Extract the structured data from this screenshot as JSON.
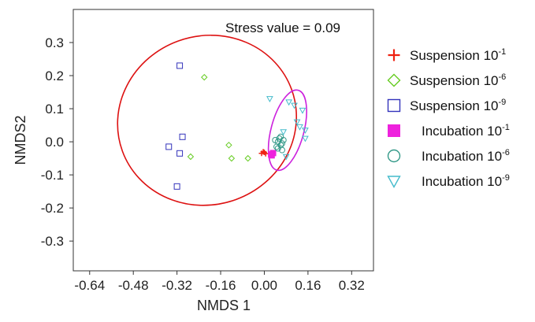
{
  "chart_data": {
    "type": "scatter",
    "xlabel": "NMDS 1",
    "ylabel": "NMDS2",
    "xlim": [
      -0.7,
      0.4
    ],
    "ylim": [
      -0.39,
      0.4
    ],
    "x_ticks": [
      "-0.64",
      "-0.48",
      "-0.32",
      "-0.16",
      "0.00",
      "0.16",
      "0.32"
    ],
    "x_tick_values": [
      -0.64,
      -0.48,
      -0.32,
      -0.16,
      0.0,
      0.16,
      0.32
    ],
    "y_ticks": [
      "0.3",
      "0.2",
      "0.1",
      "0.0",
      "-0.1",
      "-0.2",
      "-0.3"
    ],
    "y_tick_values": [
      0.3,
      0.2,
      0.1,
      0.0,
      -0.1,
      -0.2,
      -0.3
    ],
    "annotation": "Stress value = 0.09",
    "grid": false,
    "legend_position": "right",
    "series": [
      {
        "name": "Suspension 10",
        "name_sup": "-1",
        "marker": "plus",
        "color": "#ee2211",
        "points": [
          [
            -0.01,
            -0.035
          ],
          [
            0.0,
            -0.032
          ],
          [
            0.005,
            -0.036
          ],
          [
            -0.004,
            -0.03
          ]
        ]
      },
      {
        "name": "Suspension 10",
        "name_sup": "-6",
        "marker": "diamond",
        "color": "#66cc22",
        "points": [
          [
            -0.22,
            0.195
          ],
          [
            -0.27,
            -0.045
          ],
          [
            -0.13,
            -0.01
          ],
          [
            -0.12,
            -0.05
          ],
          [
            -0.06,
            -0.05
          ]
        ]
      },
      {
        "name": "Suspension 10",
        "name_sup": "-9",
        "marker": "square",
        "color": "#3333bb",
        "points": [
          [
            -0.31,
            0.23
          ],
          [
            -0.3,
            0.015
          ],
          [
            -0.35,
            -0.015
          ],
          [
            -0.31,
            -0.035
          ],
          [
            -0.32,
            -0.135
          ]
        ]
      },
      {
        "name": "Incubation 10",
        "name_sup": "-1",
        "marker": "filled-square",
        "color": "#ee22dd",
        "points": [
          [
            0.025,
            -0.038
          ],
          [
            0.032,
            -0.034
          ],
          [
            0.027,
            -0.041
          ]
        ]
      },
      {
        "name": "Incubation 10",
        "name_sup": "-6",
        "marker": "circle",
        "color": "#339988",
        "points": [
          [
            0.05,
            0.0
          ],
          [
            0.06,
            -0.01
          ],
          [
            0.055,
            0.01
          ],
          [
            0.065,
            -0.005
          ],
          [
            0.045,
            -0.015
          ],
          [
            0.07,
            0.005
          ],
          [
            0.05,
            -0.02
          ],
          [
            0.06,
            0.015
          ],
          [
            0.04,
            0.005
          ],
          [
            0.065,
            -0.025
          ]
        ]
      },
      {
        "name": "Incubation 10",
        "name_sup": "-9",
        "marker": "triangle-down",
        "color": "#44bbcc",
        "points": [
          [
            0.02,
            0.13
          ],
          [
            0.11,
            0.11
          ],
          [
            0.09,
            0.12
          ],
          [
            0.14,
            0.095
          ],
          [
            0.12,
            0.06
          ],
          [
            0.13,
            0.045
          ],
          [
            0.15,
            0.035
          ],
          [
            0.15,
            0.01
          ],
          [
            0.07,
            0.03
          ],
          [
            0.08,
            -0.045
          ]
        ]
      }
    ],
    "ellipses": [
      {
        "color": "#dd1111",
        "cx": -0.21,
        "cy": 0.065,
        "rx": 0.33,
        "ry": 0.255,
        "rotation_deg": -20
      },
      {
        "color": "#cc22dd",
        "cx": 0.085,
        "cy": 0.035,
        "rx": 0.06,
        "ry": 0.125,
        "rotation_deg": 15
      }
    ]
  }
}
